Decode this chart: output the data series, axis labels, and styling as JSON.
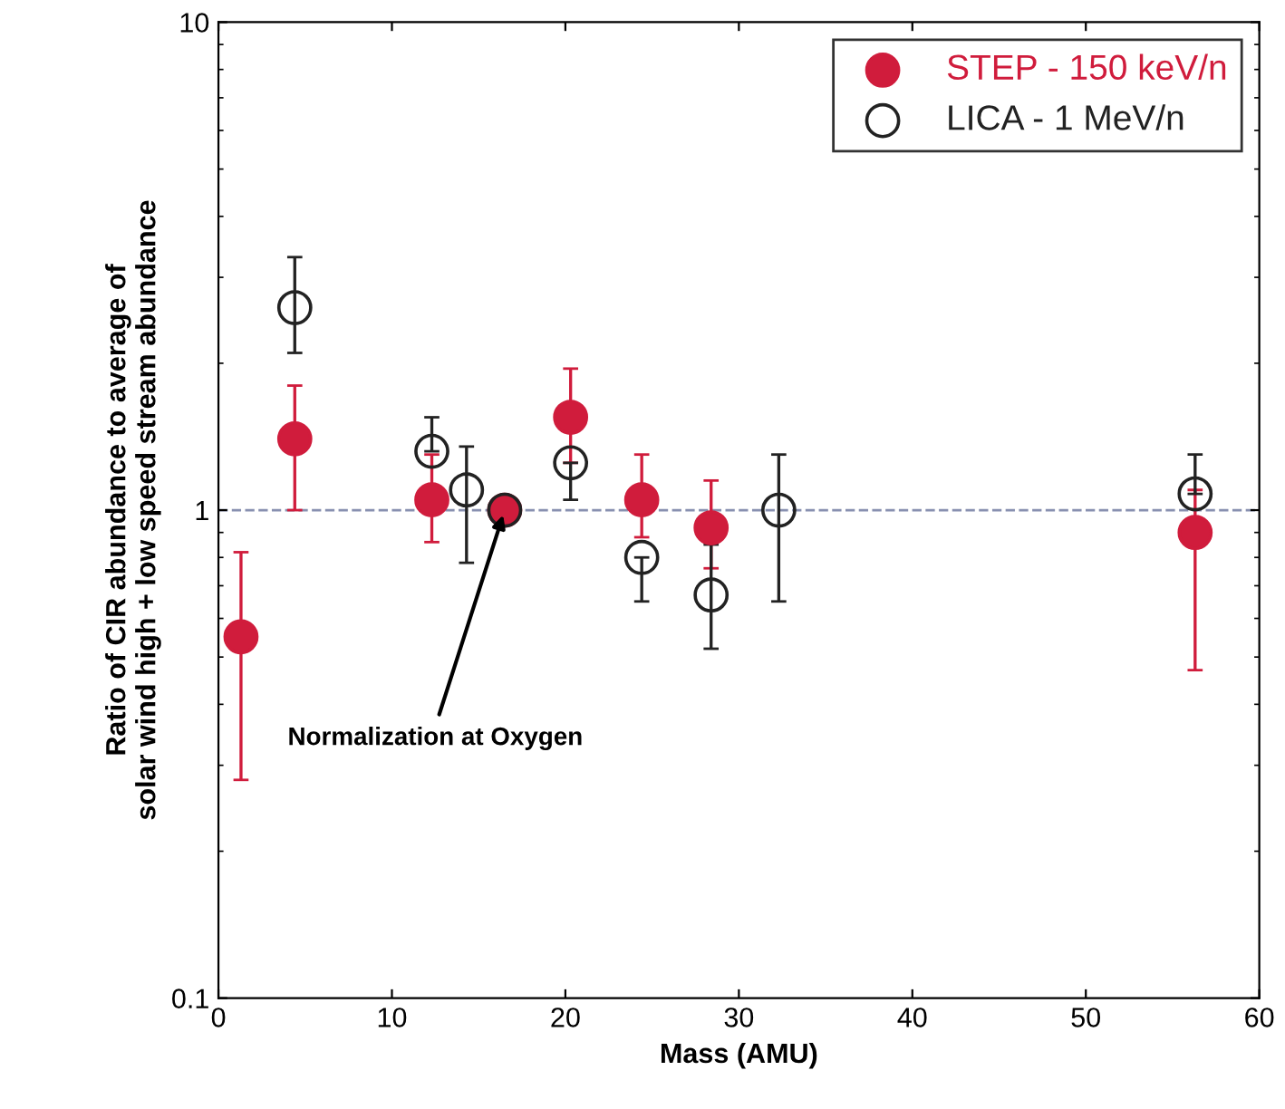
{
  "chart_data": {
    "type": "scatter",
    "xlabel": "Mass (AMU)",
    "ylabel": "Ratio of CIR abundance to average of\nsolar wind high + low speed stream abundance",
    "xlim": [
      0,
      60
    ],
    "xticks": [
      0,
      10,
      20,
      30,
      40,
      50,
      60
    ],
    "ylim": [
      0.1,
      10
    ],
    "yticks": [
      0.1,
      1,
      10
    ],
    "log": true,
    "marker": "circle",
    "grid": false,
    "legend": "top right",
    "series": [
      {
        "name": "STEP - 150 keV/n",
        "color": "#d01c3c",
        "x": [
          1.3,
          4.4,
          12.3,
          16.5,
          20.3,
          24.4,
          28.4,
          56.3
        ],
        "values": [
          0.55,
          1.4,
          1.05,
          1.0,
          1.55,
          1.05,
          0.92,
          0.9
        ],
        "errors": [
          [
            0.28,
            0.82
          ],
          [
            1.0,
            1.8
          ],
          [
            0.86,
            1.3
          ],
          null,
          [
            1.25,
            1.95
          ],
          [
            0.88,
            1.3
          ],
          [
            0.76,
            1.15
          ],
          [
            0.47,
            1.1
          ]
        ]
      },
      {
        "name": "LICA - 1 MeV/n",
        "color": "#222222",
        "x": [
          4.4,
          12.3,
          14.3,
          16.5,
          20.3,
          24.4,
          28.4,
          32.3,
          56.3
        ],
        "values": [
          2.6,
          1.32,
          1.1,
          1.0,
          1.25,
          0.8,
          0.67,
          1.0,
          1.08
        ],
        "errors": [
          [
            2.1,
            3.3
          ],
          [
            1.32,
            1.55
          ],
          [
            0.78,
            1.35
          ],
          null,
          [
            1.05,
            1.25
          ],
          [
            0.65,
            0.8
          ],
          [
            0.52,
            0.85
          ],
          [
            0.65,
            1.3
          ],
          [
            1.08,
            1.3
          ]
        ]
      }
    ],
    "ref_lines": [
      {
        "axis": "y",
        "value": 1,
        "color": "#8890b0",
        "line_style": "dashed"
      }
    ],
    "annotations": [
      {
        "text": "Normalization at Oxygen",
        "x": 16.5,
        "y": 1.0
      }
    ]
  }
}
